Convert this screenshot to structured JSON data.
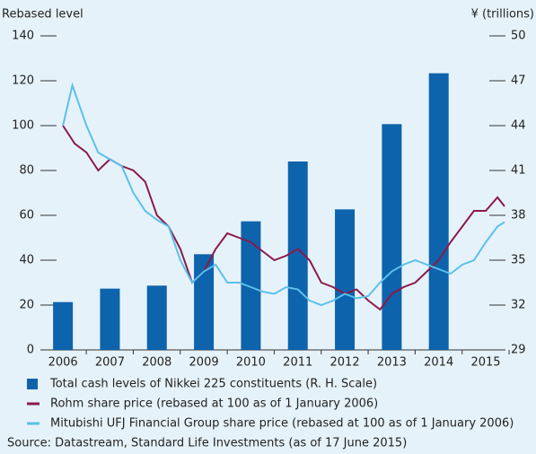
{
  "chart_data": {
    "type": "bar",
    "ylabel": "Rebased level",
    "y2label": "¥ (trillions)",
    "xlim": [
      2005.52,
      2015.42
    ],
    "xticks": [
      2006,
      2007,
      2008,
      2009,
      2010,
      2011,
      2012,
      2013,
      2014,
      2015
    ],
    "ylim": [
      0,
      140
    ],
    "yticks": [
      0,
      20,
      40,
      60,
      80,
      100,
      120,
      140
    ],
    "y2lim": [
      29,
      50
    ],
    "y2ticks": [
      29,
      32,
      35,
      38,
      41,
      44,
      47,
      50
    ],
    "series": [
      {
        "name": "Total cash levels of Nikkei 225 constituents (R. H. Scale)",
        "type": "bar",
        "axis": "y2",
        "color": "#0e63ad",
        "x": [
          2006,
          2007,
          2008,
          2009,
          2010,
          2011,
          2012,
          2013,
          2014
        ],
        "values": [
          32.2,
          33.1,
          33.3,
          35.4,
          37.6,
          41.6,
          38.4,
          44.1,
          47.5
        ]
      },
      {
        "name": "Rohm share price (rebased at 100 as of 1 January 2006)",
        "type": "line",
        "color": "#8b1a4a",
        "x": [
          2006.0,
          2006.25,
          2006.5,
          2006.75,
          2007.0,
          2007.25,
          2007.5,
          2007.75,
          2008.0,
          2008.25,
          2008.5,
          2008.75,
          2009.0,
          2009.25,
          2009.5,
          2009.75,
          2010.0,
          2010.25,
          2010.5,
          2010.75,
          2011.0,
          2011.25,
          2011.5,
          2011.75,
          2012.0,
          2012.25,
          2012.5,
          2012.75,
          2013.0,
          2013.25,
          2013.5,
          2013.75,
          2014.0,
          2014.25,
          2014.5,
          2014.75,
          2015.0,
          2015.25,
          2015.4
        ],
        "values": [
          100,
          92,
          88,
          80,
          85,
          82,
          80,
          75,
          60,
          55,
          45,
          30,
          35,
          45,
          52,
          50,
          48,
          44,
          40,
          42,
          45,
          40,
          30,
          28,
          25,
          27,
          22,
          18,
          25,
          28,
          30,
          35,
          40,
          48,
          55,
          62,
          62,
          68,
          64
        ]
      },
      {
        "name": "Mitubishi UFJ Financial Group share price (rebased at 100 as of 1 January 2006)",
        "type": "line",
        "color": "#5bc0eb",
        "x": [
          2006.0,
          2006.2,
          2006.5,
          2006.75,
          2007.0,
          2007.25,
          2007.5,
          2007.75,
          2008.0,
          2008.25,
          2008.5,
          2008.75,
          2009.0,
          2009.25,
          2009.5,
          2009.75,
          2010.0,
          2010.25,
          2010.5,
          2010.75,
          2011.0,
          2011.25,
          2011.5,
          2011.75,
          2012.0,
          2012.25,
          2012.5,
          2012.75,
          2013.0,
          2013.25,
          2013.5,
          2013.75,
          2014.0,
          2014.25,
          2014.5,
          2014.75,
          2015.0,
          2015.25,
          2015.4
        ],
        "values": [
          100,
          118,
          100,
          88,
          85,
          82,
          70,
          62,
          58,
          55,
          40,
          30,
          35,
          38,
          30,
          30,
          28,
          26,
          25,
          28,
          27,
          22,
          20,
          22,
          25,
          23,
          24,
          30,
          35,
          38,
          40,
          38,
          36,
          34,
          38,
          40,
          48,
          55,
          57
        ]
      }
    ],
    "source": "Source: Datastream, Standard Life Investments (as of 17 June 2015)"
  }
}
